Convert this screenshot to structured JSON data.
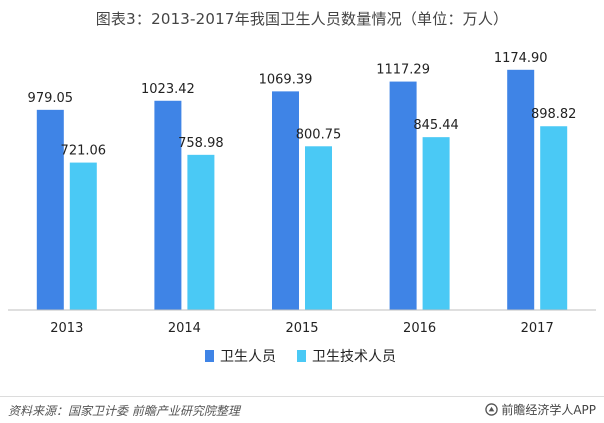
{
  "chart_data": {
    "type": "bar",
    "title": "图表3：2013-2017年我国卫生人员数量情况（单位：万人）",
    "categories": [
      "2013",
      "2014",
      "2015",
      "2016",
      "2017"
    ],
    "series": [
      {
        "name": "卫生人员",
        "color": "#3f84e6",
        "values": [
          979.05,
          1023.42,
          1069.39,
          1117.29,
          1174.9
        ],
        "labels": [
          "979.05",
          "1023.42",
          "1069.39",
          "1117.29",
          "1174.90"
        ]
      },
      {
        "name": "卫生技术人员",
        "color": "#4ac9f5",
        "values": [
          721.06,
          758.98,
          800.75,
          845.44,
          898.82
        ],
        "labels": [
          "721.06",
          "758.98",
          "800.75",
          "845.44",
          "898.82"
        ]
      }
    ],
    "ylim": [
      0,
      1350
    ],
    "xlabel": "",
    "ylabel": "",
    "grid": false,
    "legend": "bottom"
  },
  "footer": {
    "source": "资料来源：国家卫计委  前瞻产业研究院整理",
    "brand": "前瞻经济学人APP"
  }
}
